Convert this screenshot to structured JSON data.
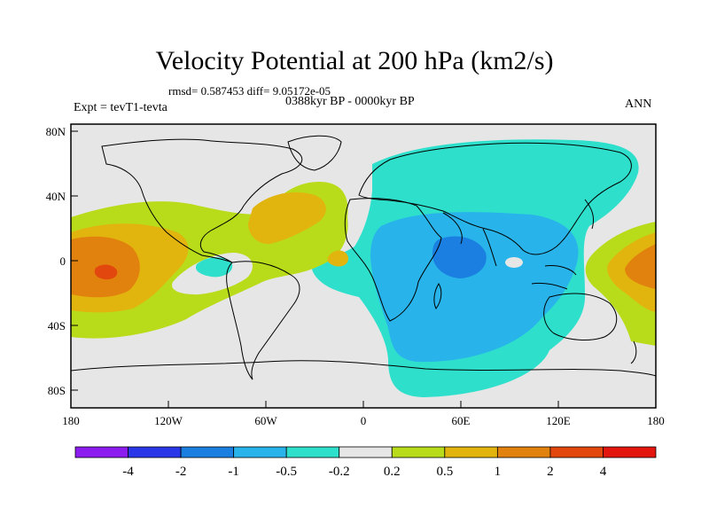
{
  "title": "Velocity Potential at 200 hPa (km2/s)",
  "stats_line": "rmsd= 0.587453 diff= 9.05172e-05",
  "period": "0388kyr BP - 0000kyr BP",
  "experiment": "Expt = tevT1-tevta",
  "season": "ANN",
  "axes": {
    "x_ticks": [
      "180",
      "120W",
      "60W",
      "0",
      "60E",
      "120E",
      "180"
    ],
    "y_ticks": [
      "80N",
      "40N",
      "0",
      "40S",
      "80S"
    ]
  },
  "colorbar": {
    "colors": [
      "#8c1cf0",
      "#2a37e8",
      "#1a7fe0",
      "#28b4ea",
      "#2ee0cc",
      "#e6e6e6",
      "#b8dc1a",
      "#e2b40e",
      "#e2820e",
      "#e2470e",
      "#e2160e"
    ],
    "labels": [
      "-4",
      "-2",
      "-1",
      "-0.5",
      "-0.2",
      "0.2",
      "0.5",
      "1",
      "2",
      "4"
    ]
  }
}
